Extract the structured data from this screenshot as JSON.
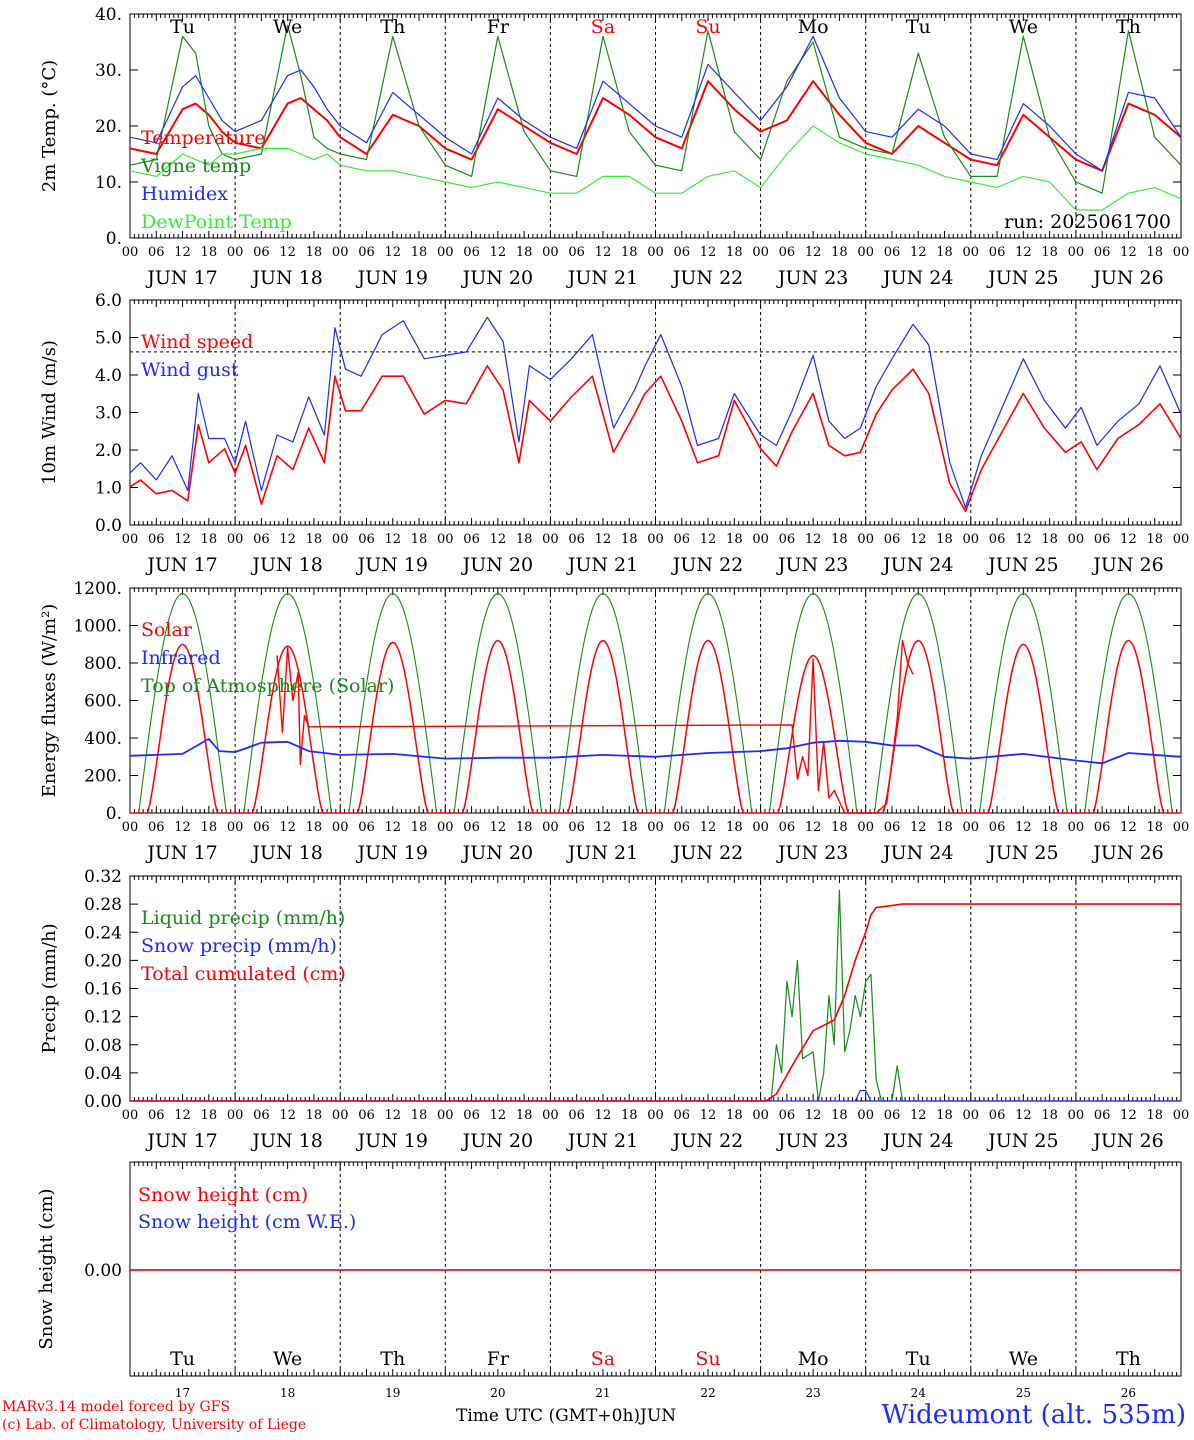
{
  "run_label": "run: 2025061700",
  "day_axis_labels": [
    "JUN 17",
    "JUN 18",
    "JUN 19",
    "JUN 20",
    "JUN 21",
    "JUN 22",
    "JUN 23",
    "JUN 24",
    "JUN 25",
    "JUN 26"
  ],
  "hour_labels": [
    "00",
    "06",
    "12",
    "18"
  ],
  "weekdays": [
    {
      "label": "Tu",
      "color": "#000000"
    },
    {
      "label": "We",
      "color": "#000000"
    },
    {
      "label": "Th",
      "color": "#000000"
    },
    {
      "label": "Fr",
      "color": "#000000"
    },
    {
      "label": "Sa",
      "color": "#ff0000"
    },
    {
      "label": "Su",
      "color": "#ff0000"
    },
    {
      "label": "Mo",
      "color": "#000000"
    },
    {
      "label": "Tu",
      "color": "#000000"
    },
    {
      "label": "We",
      "color": "#000000"
    },
    {
      "label": "Th",
      "color": "#000000"
    }
  ],
  "day_numbers": [
    "17",
    "18",
    "19",
    "20",
    "21",
    "22",
    "23",
    "24",
    "25",
    "26"
  ],
  "footer": {
    "model_line": "MARv3.14 model forced by GFS",
    "credit_line": "(c) Lab. of Climatology, University of Liege",
    "xlabel": "Time UTC (GMT+0h)",
    "month": "JUN",
    "station": "Wideumont (alt. 535m)"
  },
  "colors": {
    "red": "#ff0000",
    "darkgreen": "#1a8a1a",
    "blue": "#1f2bff",
    "lightgreen": "#33ee33",
    "gray": "#555555"
  },
  "chart_data": [
    {
      "type": "line",
      "ylabel": "2m Temp. (°C)",
      "ylim": [
        0,
        40
      ],
      "yticks": [
        "0.",
        "10.",
        "20.",
        "30.",
        "40."
      ],
      "x_unit": "day offset from JUN 17 00 UTC",
      "series": [
        {
          "name": "Temperature",
          "color": "red",
          "x": [
            0,
            0.25,
            0.5,
            0.625,
            0.75,
            0.875,
            1,
            1.25,
            1.5,
            1.625,
            1.75,
            1.875,
            2,
            2.25,
            2.5,
            2.75,
            3,
            3.25,
            3.5,
            3.75,
            4,
            4.25,
            4.5,
            4.75,
            5,
            5.25,
            5.5,
            5.75,
            6,
            6.25,
            6.5,
            6.75,
            7,
            7.25,
            7.5,
            7.75,
            8,
            8.25,
            8.5,
            8.75,
            9,
            9.25,
            9.5,
            9.75,
            10
          ],
          "y": [
            16,
            15,
            23,
            24,
            22,
            19,
            17,
            16,
            24,
            25,
            23,
            21,
            18,
            15,
            22,
            20,
            16,
            14,
            23,
            20,
            17,
            15,
            25,
            22,
            18,
            16,
            28,
            23,
            19,
            21,
            28,
            22,
            17,
            15,
            20,
            17,
            14,
            13,
            22,
            18,
            14,
            12,
            24,
            22,
            18
          ]
        },
        {
          "name": "Vigne temp",
          "color": "darkgreen",
          "x": [
            0,
            0.25,
            0.5,
            0.625,
            0.75,
            0.875,
            1,
            1.25,
            1.5,
            1.625,
            1.75,
            1.875,
            2,
            2.25,
            2.5,
            2.75,
            3,
            3.25,
            3.5,
            3.75,
            4,
            4.25,
            4.5,
            4.75,
            5,
            5.25,
            5.5,
            5.75,
            6,
            6.25,
            6.5,
            6.75,
            7,
            7.25,
            7.5,
            7.75,
            8,
            8.25,
            8.5,
            8.75,
            9,
            9.25,
            9.5,
            9.75,
            10
          ],
          "y": [
            13,
            14,
            36,
            33,
            20,
            15,
            14,
            15,
            38,
            29,
            18,
            16,
            15,
            14,
            36,
            20,
            13,
            11,
            36,
            19,
            12,
            11,
            36,
            19,
            13,
            12,
            37,
            19,
            14,
            28,
            35,
            18,
            16,
            15,
            33,
            18,
            11,
            11,
            36,
            18,
            10,
            8,
            37,
            18,
            13
          ]
        },
        {
          "name": "Humidex",
          "color": "blue",
          "x": [
            0,
            0.25,
            0.5,
            0.625,
            0.75,
            0.875,
            1,
            1.25,
            1.5,
            1.625,
            1.75,
            1.875,
            2,
            2.25,
            2.5,
            2.75,
            3,
            3.25,
            3.5,
            3.75,
            4,
            4.25,
            4.5,
            4.75,
            5,
            5.25,
            5.5,
            5.75,
            6,
            6.25,
            6.5,
            6.75,
            7,
            7.25,
            7.5,
            7.75,
            8,
            8.25,
            8.5,
            8.75,
            9,
            9.25,
            9.5,
            9.75,
            10
          ],
          "y": [
            18,
            17,
            27,
            29,
            25,
            21,
            19,
            21,
            29,
            30,
            27,
            23,
            20,
            17,
            26,
            22,
            18,
            15,
            25,
            21,
            18,
            16,
            28,
            24,
            20,
            18,
            31,
            26,
            21,
            27,
            36,
            25,
            19,
            18,
            23,
            20,
            15,
            14,
            24,
            20,
            15,
            12,
            26,
            25,
            18
          ]
        },
        {
          "name": "DewPoint Temp",
          "color": "lightgreen",
          "x": [
            0,
            0.25,
            0.5,
            0.625,
            0.75,
            0.875,
            1,
            1.25,
            1.5,
            1.625,
            1.75,
            1.875,
            2,
            2.25,
            2.5,
            2.75,
            3,
            3.25,
            3.5,
            3.75,
            4,
            4.25,
            4.5,
            4.75,
            5,
            5.25,
            5.5,
            5.75,
            6,
            6.25,
            6.5,
            6.75,
            7,
            7.25,
            7.5,
            7.75,
            8,
            8.25,
            8.5,
            8.75,
            9,
            9.25,
            9.5,
            9.75,
            10
          ],
          "y": [
            12,
            11,
            15,
            14,
            13,
            15,
            15,
            16,
            16,
            15,
            14,
            15,
            13,
            12,
            12,
            11,
            10,
            9,
            10,
            9,
            8,
            8,
            11,
            11,
            8,
            8,
            11,
            12,
            9,
            15,
            20,
            17,
            15,
            14,
            13,
            11,
            10,
            9,
            11,
            10,
            5,
            5,
            8,
            9,
            7
          ]
        }
      ]
    },
    {
      "type": "line",
      "ylabel": "10m Wind (m/s)",
      "ylim": [
        0,
        6.5
      ],
      "yticks": [
        "0.0",
        "1.0",
        "2.0",
        "3.0",
        "4.0",
        "5.0",
        "6.0"
      ],
      "reference_line": 5.0,
      "x_unit": "day offset from JUN 17 00 UTC",
      "series": [
        {
          "name": "Wind speed",
          "color": "red",
          "x": [
            0,
            0.1,
            0.25,
            0.4,
            0.55,
            0.65,
            0.75,
            0.9,
            1,
            1.1,
            1.25,
            1.4,
            1.55,
            1.7,
            1.85,
            1.95,
            2.05,
            2.2,
            2.4,
            2.6,
            2.8,
            3,
            3.2,
            3.4,
            3.55,
            3.7,
            3.8,
            4,
            4.2,
            4.4,
            4.6,
            4.8,
            4.9,
            5.05,
            5.25,
            5.4,
            5.6,
            5.75,
            6,
            6.15,
            6.3,
            6.5,
            6.65,
            6.8,
            6.95,
            7.1,
            7.25,
            7.45,
            7.6,
            7.8,
            7.95,
            8.1,
            8.3,
            8.5,
            8.7,
            8.9,
            9.05,
            9.2,
            9.4,
            9.6,
            9.8,
            10
          ],
          "y": [
            1.1,
            1.3,
            0.9,
            1.0,
            0.7,
            2.9,
            1.8,
            2.2,
            1.5,
            2.3,
            0.6,
            2.0,
            1.6,
            2.8,
            1.8,
            4.3,
            3.3,
            3.3,
            4.3,
            4.3,
            3.2,
            3.6,
            3.5,
            4.6,
            3.9,
            1.8,
            3.6,
            3.0,
            3.7,
            4.3,
            2.1,
            3.2,
            3.8,
            4.3,
            3.0,
            1.8,
            2.0,
            3.6,
            2.2,
            1.7,
            2.7,
            3.8,
            2.3,
            2.0,
            2.1,
            3.2,
            3.9,
            4.5,
            3.8,
            1.2,
            0.4,
            1.6,
            2.7,
            3.8,
            2.8,
            2.1,
            2.4,
            1.6,
            2.5,
            2.9,
            3.5,
            2.5
          ]
        },
        {
          "name": "Wind gust",
          "color": "blue",
          "x": [
            0,
            0.1,
            0.25,
            0.4,
            0.55,
            0.65,
            0.75,
            0.9,
            1,
            1.1,
            1.25,
            1.4,
            1.55,
            1.7,
            1.85,
            1.95,
            2.05,
            2.2,
            2.4,
            2.6,
            2.8,
            3,
            3.2,
            3.4,
            3.55,
            3.7,
            3.8,
            4,
            4.2,
            4.4,
            4.6,
            4.8,
            4.9,
            5.05,
            5.25,
            5.4,
            5.6,
            5.75,
            6,
            6.15,
            6.3,
            6.5,
            6.65,
            6.8,
            6.95,
            7.1,
            7.25,
            7.45,
            7.6,
            7.8,
            7.95,
            8.1,
            8.3,
            8.5,
            8.7,
            8.9,
            9.05,
            9.2,
            9.4,
            9.6,
            9.8,
            10
          ],
          "y": [
            1.5,
            1.8,
            1.3,
            2.0,
            1.0,
            3.8,
            2.5,
            2.5,
            1.8,
            3.0,
            1.0,
            2.6,
            2.4,
            3.7,
            2.6,
            5.7,
            4.5,
            4.3,
            5.5,
            5.9,
            4.8,
            4.9,
            5.0,
            6.0,
            5.3,
            2.4,
            4.6,
            4.2,
            4.8,
            5.5,
            2.8,
            3.9,
            4.6,
            5.5,
            4.0,
            2.3,
            2.5,
            3.8,
            2.6,
            2.3,
            3.3,
            4.9,
            3.0,
            2.5,
            2.8,
            4.0,
            4.8,
            5.8,
            5.2,
            1.8,
            0.5,
            2.0,
            3.4,
            4.8,
            3.6,
            2.8,
            3.4,
            2.3,
            3.0,
            3.5,
            4.6,
            3.2
          ]
        }
      ]
    },
    {
      "type": "line",
      "ylabel": "Energy fluxes (W/m²)",
      "ylim": [
        0,
        1200
      ],
      "yticks": [
        "0.",
        "200.",
        "400.",
        "600.",
        "800.",
        "1000.",
        "1200."
      ],
      "x_unit": "day offset from JUN 17 00 UTC",
      "solar_day_peaks": [
        900,
        890,
        910,
        920,
        920,
        920,
        840,
        920,
        900,
        920
      ],
      "series": [
        {
          "name": "Solar",
          "color": "red",
          "x": [
            1.4,
            1.45,
            1.5,
            1.55,
            1.6,
            1.62,
            1.66,
            1.7,
            6.3,
            6.35,
            6.4,
            6.45,
            6.5,
            6.55,
            6.6,
            6.65,
            6.7,
            6.8,
            7.1,
            7.2,
            7.3,
            7.35,
            7.4,
            7.45
          ],
          "y": [
            840,
            430,
            880,
            600,
            750,
            260,
            520,
            460,
            470,
            180,
            300,
            200,
            820,
            120,
            380,
            80,
            120,
            0,
            0,
            50,
            500,
            920,
            800,
            740
          ]
        },
        {
          "name": "Infrared",
          "color": "blue",
          "x": [
            0,
            0.5,
            0.75,
            0.85,
            1,
            1.25,
            1.5,
            1.7,
            2,
            2.5,
            3,
            3.5,
            4,
            4.5,
            5,
            5.5,
            6,
            6.25,
            6.5,
            6.75,
            7,
            7.25,
            7.5,
            7.75,
            8,
            8.5,
            9,
            9.25,
            9.5,
            10
          ],
          "y": [
            305,
            315,
            395,
            330,
            325,
            375,
            380,
            330,
            310,
            315,
            290,
            295,
            295,
            310,
            300,
            320,
            330,
            345,
            375,
            385,
            380,
            360,
            360,
            300,
            290,
            315,
            280,
            265,
            320,
            300
          ]
        },
        {
          "name": "Top of Atmosphere (Solar)",
          "color": "darkgreen",
          "day_peak": 1170,
          "sunrise_hour": 2.0,
          "sunset_hour": 22.0
        }
      ]
    },
    {
      "type": "line",
      "ylabel": "Precip (mm/h)",
      "ylim": [
        0,
        0.32
      ],
      "yticks": [
        "0.00",
        "0.04",
        "0.08",
        "0.12",
        "0.16",
        "0.20",
        "0.24",
        "0.28",
        "0.32"
      ],
      "x_unit": "day offset from JUN 17 00 UTC",
      "series": [
        {
          "name": "Liquid precip (mm/h)",
          "color": "darkgreen",
          "x": [
            0,
            6.1,
            6.15,
            6.2,
            6.25,
            6.3,
            6.35,
            6.4,
            6.5,
            6.55,
            6.6,
            6.65,
            6.7,
            6.75,
            6.8,
            6.85,
            6.9,
            6.95,
            7.0,
            7.05,
            7.1,
            7.15,
            7.25,
            7.3,
            7.35,
            10
          ],
          "y": [
            0,
            0,
            0.08,
            0.04,
            0.17,
            0.12,
            0.2,
            0.06,
            0.07,
            0.0,
            0.04,
            0.15,
            0.08,
            0.3,
            0.07,
            0.1,
            0.15,
            0.12,
            0.17,
            0.18,
            0.03,
            0.0,
            0.0,
            0.05,
            0.0,
            0
          ]
        },
        {
          "name": "Snow precip (mm/h)",
          "color": "blue",
          "x": [
            0,
            6.9,
            6.95,
            7.0,
            7.05,
            10
          ],
          "y": [
            0,
            0,
            0.015,
            0.015,
            0,
            0
          ]
        },
        {
          "name": "Total cumulated (cm)",
          "color": "red",
          "x": [
            0,
            6.05,
            6.15,
            6.3,
            6.5,
            6.7,
            6.8,
            6.9,
            7.0,
            7.05,
            7.1,
            7.2,
            7.35,
            10
          ],
          "y": [
            0,
            0,
            0.01,
            0.05,
            0.1,
            0.115,
            0.15,
            0.2,
            0.24,
            0.265,
            0.275,
            0.277,
            0.28,
            0.28
          ]
        }
      ]
    },
    {
      "type": "line",
      "ylabel": "Snow height (cm)",
      "ytick": "0.00",
      "x_unit": "day offset from JUN 17 00 UTC",
      "series": [
        {
          "name": "Snow height (cm)",
          "color": "red",
          "x": [
            0,
            10
          ],
          "y": [
            0,
            0
          ]
        },
        {
          "name": "Snow height (cm W.E.)",
          "color": "blue",
          "x": [
            0,
            10
          ],
          "y": [
            0,
            0
          ]
        }
      ]
    }
  ]
}
